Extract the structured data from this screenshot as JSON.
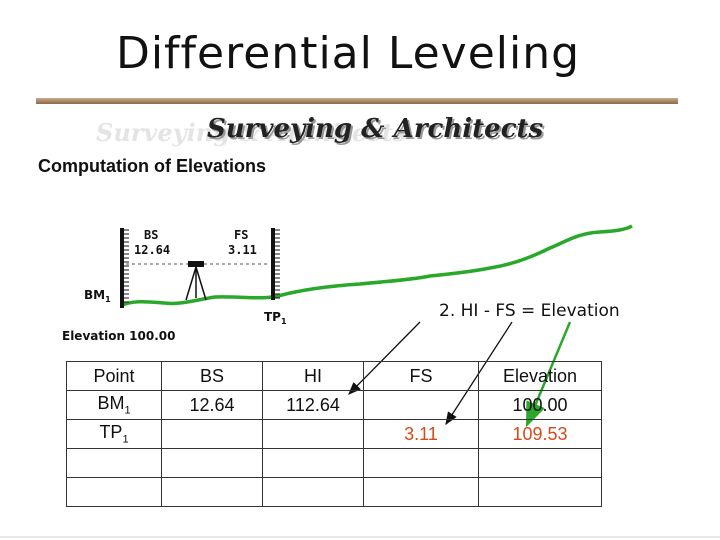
{
  "title": "Differential Leveling",
  "brand": "Surveying & Architects",
  "subtitle": "Computation of Elevations",
  "diagram": {
    "bs_label": "BS",
    "bs_value": "12.64",
    "fs_label": "FS",
    "fs_value": "3.11",
    "bm_label": "BM",
    "bm_sub": "1",
    "tp_label": "TP",
    "tp_sub": "1",
    "elevation_label": "Elevation 100.00",
    "formula": "2. HI - FS = Elevation",
    "colors": {
      "ground": "#2aa82a",
      "arrow_green": "#2aa82a",
      "arrow_black": "#111111"
    }
  },
  "table": {
    "headers": [
      "Point",
      "BS",
      "HI",
      "FS",
      "Elevation"
    ],
    "rows": [
      {
        "point": "BM",
        "point_sub": "1",
        "bs": "12.64",
        "hi": "112.64",
        "fs": "",
        "elevation": "100.00"
      },
      {
        "point": "TP",
        "point_sub": "1",
        "bs": "",
        "hi": "",
        "fs": "3.11",
        "elevation": "109.53"
      },
      {
        "point": "",
        "point_sub": "",
        "bs": "",
        "hi": "",
        "fs": "",
        "elevation": ""
      },
      {
        "point": "",
        "point_sub": "",
        "bs": "",
        "hi": "",
        "fs": "",
        "elevation": ""
      }
    ],
    "highlight_color": "#d64a1a"
  }
}
